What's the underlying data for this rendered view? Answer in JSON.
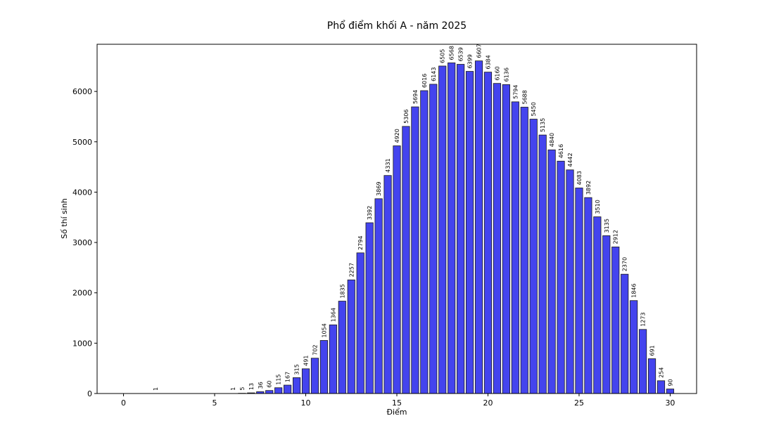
{
  "chart_data": {
    "type": "bar",
    "title": "Phổ điểm khối A - năm 2025",
    "xlabel": "Điểm",
    "ylabel": "Số thí sinh",
    "xlim": [
      -1.45,
      31.45
    ],
    "ylim": [
      0,
      6937
    ],
    "xticks": [
      0,
      5,
      10,
      15,
      20,
      25,
      30
    ],
    "yticks": [
      0,
      1000,
      2000,
      3000,
      4000,
      5000,
      6000
    ],
    "bar_width": 0.4,
    "bar_color": "#4444ee",
    "bar_edge_color": "#1a1a1a",
    "grid": false,
    "x": [
      0,
      0.25,
      0.5,
      0.75,
      1,
      1.25,
      1.5,
      1.75,
      2,
      2.25,
      2.5,
      2.75,
      3,
      3.25,
      3.5,
      3.75,
      4,
      4.25,
      4.5,
      4.75,
      5,
      5.25,
      5.5,
      5.75,
      6,
      6.5,
      7,
      7.5,
      8,
      8.5,
      9,
      9.5,
      10,
      10.5,
      11,
      11.5,
      12,
      12.5,
      13,
      13.5,
      14,
      14.5,
      15,
      15.5,
      16,
      16.5,
      17,
      17.5,
      18,
      18.5,
      19,
      19.5,
      20,
      20.5,
      21,
      21.5,
      22,
      22.5,
      23,
      23.5,
      24,
      24.5,
      25,
      25.5,
      26,
      26.5,
      27,
      27.5,
      28,
      28.5,
      29,
      29.5,
      30
    ],
    "values": [
      0,
      0,
      0,
      0,
      0,
      0,
      0,
      1,
      0,
      0,
      0,
      0,
      0,
      0,
      0,
      0,
      0,
      0,
      0,
      0,
      0,
      0,
      0,
      0,
      1,
      5,
      13,
      36,
      60,
      115,
      167,
      315,
      491,
      702,
      1054,
      1364,
      1835,
      2257,
      2794,
      3392,
      3869,
      4331,
      4920,
      5306,
      5694,
      6016,
      6143,
      6505,
      6568,
      6539,
      6399,
      6607,
      6384,
      6160,
      6136,
      5794,
      5688,
      5450,
      5135,
      4840,
      4616,
      4442,
      4083,
      3892,
      3510,
      3135,
      2912,
      2370,
      1846,
      1273,
      691,
      254,
      90
    ]
  }
}
